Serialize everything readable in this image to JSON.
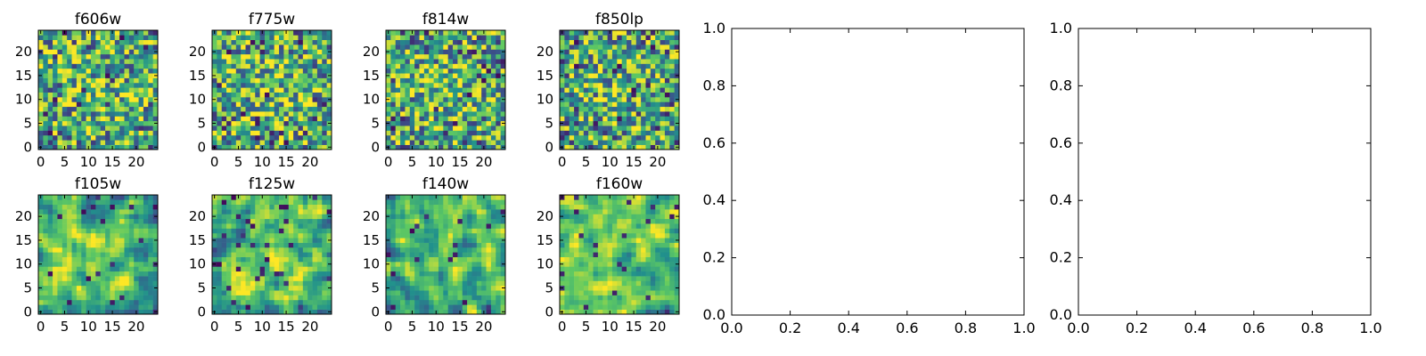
{
  "figure": {
    "colormap": [
      "#440154",
      "#3b528b",
      "#21918c",
      "#5ec962",
      "#fde725"
    ]
  },
  "chart_data": [
    {
      "type": "heatmap",
      "title": "f606w",
      "xlim": [
        -0.5,
        24.5
      ],
      "ylim": [
        -0.5,
        24.5
      ],
      "xticks": [
        0,
        5,
        10,
        15,
        20
      ],
      "yticks": [
        0,
        5,
        10,
        15,
        20
      ],
      "grid": false,
      "size": 25,
      "seed": 11,
      "smooth": 0,
      "center": 0.6
    },
    {
      "type": "heatmap",
      "title": "f775w",
      "xlim": [
        -0.5,
        24.5
      ],
      "ylim": [
        -0.5,
        24.5
      ],
      "xticks": [
        0,
        5,
        10,
        15,
        20
      ],
      "yticks": [
        0,
        5,
        10,
        15,
        20
      ],
      "grid": false,
      "size": 25,
      "seed": 23,
      "smooth": 0,
      "center": 0.62
    },
    {
      "type": "heatmap",
      "title": "f814w",
      "xlim": [
        -0.5,
        24.5
      ],
      "ylim": [
        -0.5,
        24.5
      ],
      "xticks": [
        0,
        5,
        10,
        15,
        20
      ],
      "yticks": [
        0,
        5,
        10,
        15,
        20
      ],
      "grid": false,
      "size": 25,
      "seed": 37,
      "smooth": 0,
      "center": 0.6
    },
    {
      "type": "heatmap",
      "title": "f850lp",
      "xlim": [
        -0.5,
        24.5
      ],
      "ylim": [
        -0.5,
        24.5
      ],
      "xticks": [
        0,
        5,
        10,
        15,
        20
      ],
      "yticks": [
        0,
        5,
        10,
        15,
        20
      ],
      "grid": false,
      "size": 25,
      "seed": 41,
      "smooth": 0,
      "center": 0.58
    },
    {
      "type": "heatmap",
      "title": "f105w",
      "xlim": [
        -0.5,
        24.5
      ],
      "ylim": [
        -0.5,
        24.5
      ],
      "xticks": [
        0,
        5,
        10,
        15,
        20
      ],
      "yticks": [
        0,
        5,
        10,
        15,
        20
      ],
      "grid": false,
      "size": 25,
      "seed": 53,
      "smooth": 1,
      "center": 0.62
    },
    {
      "type": "heatmap",
      "title": "f125w",
      "xlim": [
        -0.5,
        24.5
      ],
      "ylim": [
        -0.5,
        24.5
      ],
      "xticks": [
        0,
        5,
        10,
        15,
        20
      ],
      "yticks": [
        0,
        5,
        10,
        15,
        20
      ],
      "grid": false,
      "size": 25,
      "seed": 67,
      "smooth": 1,
      "center": 0.64
    },
    {
      "type": "heatmap",
      "title": "f140w",
      "xlim": [
        -0.5,
        24.5
      ],
      "ylim": [
        -0.5,
        24.5
      ],
      "xticks": [
        0,
        5,
        10,
        15,
        20
      ],
      "yticks": [
        0,
        5,
        10,
        15,
        20
      ],
      "grid": false,
      "size": 25,
      "seed": 79,
      "smooth": 1,
      "center": 0.6
    },
    {
      "type": "heatmap",
      "title": "f160w",
      "xlim": [
        -0.5,
        24.5
      ],
      "ylim": [
        -0.5,
        24.5
      ],
      "xticks": [
        0,
        5,
        10,
        15,
        20
      ],
      "yticks": [
        0,
        5,
        10,
        15,
        20
      ],
      "grid": false,
      "size": 25,
      "seed": 83,
      "smooth": 1,
      "center": 0.62
    },
    {
      "type": "scatter",
      "title": "",
      "x": [],
      "y": [],
      "xlim": [
        0.0,
        1.0
      ],
      "ylim": [
        0.0,
        1.0
      ],
      "xticks": [
        "0.0",
        "0.2",
        "0.4",
        "0.6",
        "0.8",
        "1.0"
      ],
      "yticks": [
        "0.0",
        "0.2",
        "0.4",
        "0.6",
        "0.8",
        "1.0"
      ],
      "grid": false
    },
    {
      "type": "scatter",
      "title": "",
      "x": [],
      "y": [],
      "xlim": [
        0.0,
        1.0
      ],
      "ylim": [
        0.0,
        1.0
      ],
      "xticks": [
        "0.0",
        "0.2",
        "0.4",
        "0.6",
        "0.8",
        "1.0"
      ],
      "yticks": [
        "0.0",
        "0.2",
        "0.4",
        "0.6",
        "0.8",
        "1.0"
      ],
      "grid": false
    }
  ]
}
